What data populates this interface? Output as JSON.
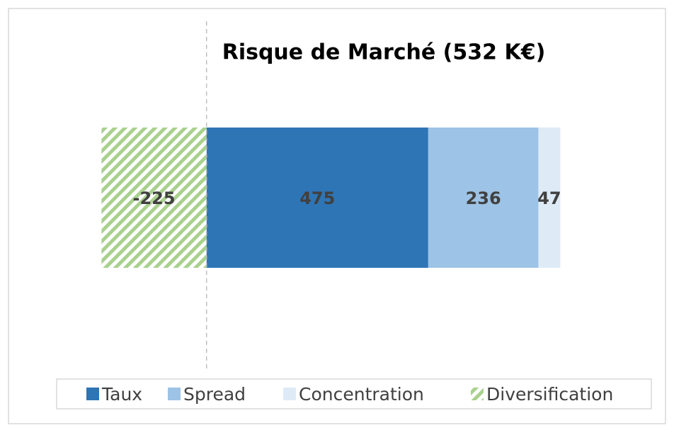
{
  "chart_data": {
    "type": "stacked_barh",
    "title": "Risque de Marché (532 K€)",
    "categories": [
      null
    ],
    "series": [
      {
        "name": "Taux",
        "color": "#2e75b6",
        "values": [
          475
        ]
      },
      {
        "name": "Spread",
        "color": "#9dc3e6",
        "values": [
          236
        ]
      },
      {
        "name": "Concentration",
        "color": "#deebf7",
        "values": [
          47
        ]
      },
      {
        "name": "Diversification",
        "color": "#a9d18e",
        "hatch": true,
        "values": [
          -225
        ]
      }
    ],
    "xlim": [
      -400,
      950
    ],
    "legend": "bottom"
  }
}
